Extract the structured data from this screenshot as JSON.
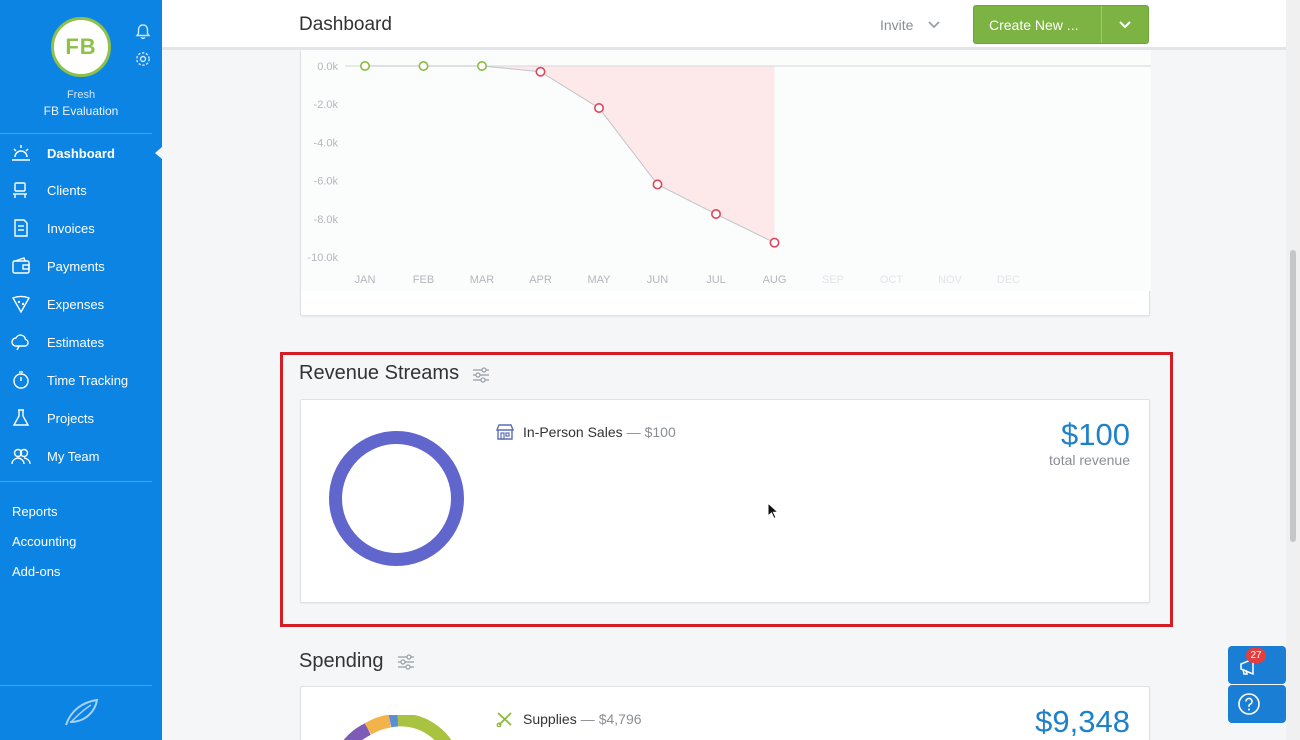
{
  "sidebar": {
    "avatar_initials": "FB",
    "org_line1": "Fresh",
    "org_line2": "FB Evaluation",
    "nav": [
      {
        "label": "Dashboard",
        "icon": "dashboard-sun-icon",
        "active": true
      },
      {
        "label": "Clients",
        "icon": "clients-icon"
      },
      {
        "label": "Invoices",
        "icon": "invoices-icon"
      },
      {
        "label": "Payments",
        "icon": "payments-wallet-icon"
      },
      {
        "label": "Expenses",
        "icon": "expenses-pizza-icon"
      },
      {
        "label": "Estimates",
        "icon": "estimates-cloud-icon"
      },
      {
        "label": "Time Tracking",
        "icon": "stopwatch-icon"
      },
      {
        "label": "Projects",
        "icon": "flask-icon"
      },
      {
        "label": "My Team",
        "icon": "team-icon"
      }
    ],
    "sub_nav": [
      "Reports",
      "Accounting",
      "Add-ons"
    ]
  },
  "header": {
    "title": "Dashboard",
    "invite_label": "Invite",
    "create_label": "Create New ..."
  },
  "chart_data": {
    "type": "line",
    "categories": [
      "JAN",
      "FEB",
      "MAR",
      "APR",
      "MAY",
      "JUN",
      "JUL",
      "AUG",
      "SEP",
      "OCT",
      "NOV",
      "DEC"
    ],
    "y_tick_labels": [
      "0.0k",
      "-2.0k",
      "-4.0k",
      "-6.0k",
      "-8.0k",
      "-10.0k"
    ],
    "values": [
      0,
      0,
      0,
      -300,
      -2200,
      -6200,
      -7750,
      -9250,
      null,
      null,
      null,
      null
    ],
    "ylim": [
      -10000,
      0
    ],
    "positive_color": "#8dbb3f",
    "negative_color": "#e0455a",
    "fill_color": "#fde8ea"
  },
  "revenue": {
    "title": "Revenue Streams",
    "stream_name": "In-Person Sales",
    "stream_sep": "—",
    "stream_amount": "$100",
    "total": "$100",
    "total_label": "total revenue",
    "ring_color": "#6166cc"
  },
  "spending": {
    "title": "Spending",
    "item_name": "Supplies",
    "item_sep": "—",
    "item_amount": "$4,796",
    "total": "$9,348"
  },
  "notifications": {
    "count": "27"
  }
}
